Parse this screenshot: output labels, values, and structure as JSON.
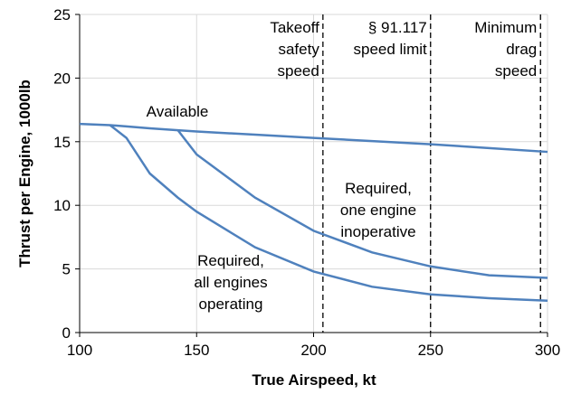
{
  "chart_data": {
    "type": "line",
    "xlabel": "True Airspeed, kt",
    "ylabel": "Thrust per Engine, 1000lb",
    "x": [
      100,
      113,
      120,
      130,
      142,
      150,
      175,
      200,
      225,
      250,
      275,
      300
    ],
    "series": [
      {
        "name": "Available",
        "color": "#4f81bd",
        "values": [
          16.4,
          16.3,
          16.2,
          16.05,
          15.9,
          15.8,
          15.55,
          15.3,
          15.05,
          14.8,
          14.5,
          14.2
        ]
      },
      {
        "name": "Required, one engine inoperative",
        "label_lines": [
          "Required,",
          "one engine",
          "inoperative"
        ],
        "color": "#4f81bd",
        "values": [
          null,
          null,
          null,
          null,
          15.9,
          14.0,
          10.6,
          8.0,
          6.3,
          5.2,
          4.5,
          4.3
        ]
      },
      {
        "name": "Required, all engines operating",
        "label_lines": [
          "Required,",
          "all engines",
          "operating"
        ],
        "color": "#4f81bd",
        "values": [
          null,
          16.3,
          15.3,
          12.5,
          10.6,
          9.5,
          6.7,
          4.8,
          3.6,
          3.0,
          2.7,
          2.5
        ]
      }
    ],
    "vlines": [
      {
        "x": 204,
        "lines": [
          "Takeoff",
          "safety",
          "speed"
        ]
      },
      {
        "x": 250,
        "lines": [
          "§ 91.117",
          "speed limit"
        ]
      },
      {
        "x": 297,
        "lines": [
          "Minimum",
          "drag",
          "speed"
        ]
      }
    ],
    "xlim": [
      100,
      300
    ],
    "xticks": [
      100,
      150,
      200,
      250,
      300
    ],
    "ylim": [
      0,
      25
    ],
    "yticks": [
      0,
      5,
      10,
      15,
      20,
      25
    ],
    "grid": true
  }
}
